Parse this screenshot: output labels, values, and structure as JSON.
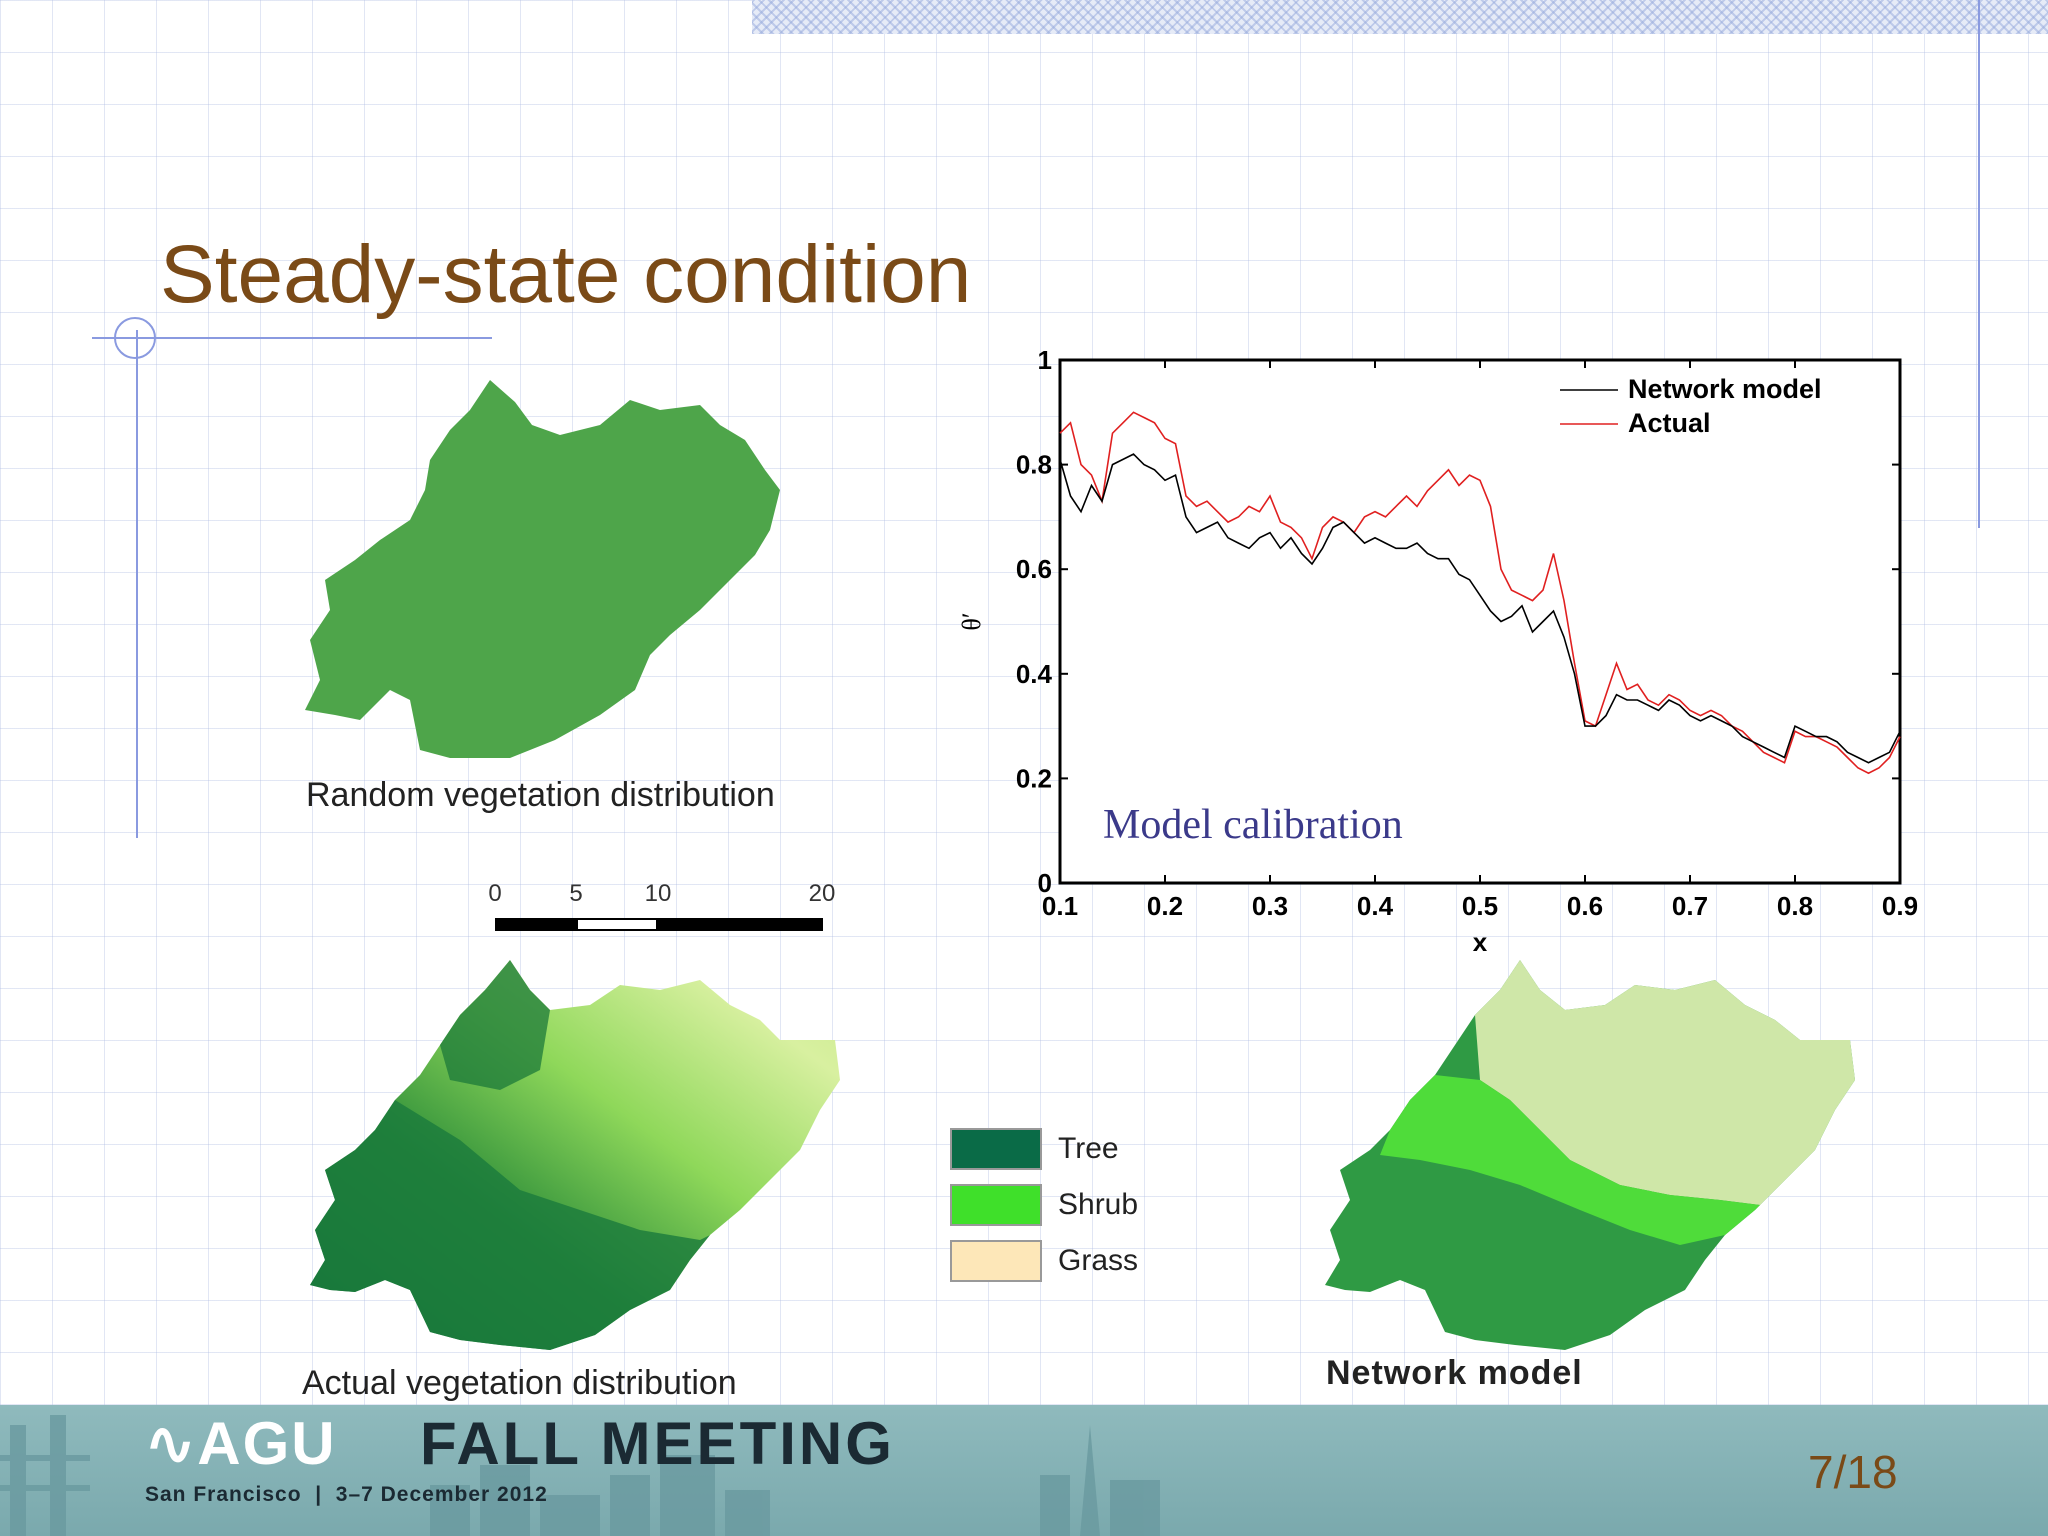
{
  "slide": {
    "title": "Steady-state condition",
    "page_number": "7/18"
  },
  "maps": {
    "random_caption": "Random vegetation distribution",
    "actual_caption": "Actual vegetation distribution",
    "network_caption": "Network model"
  },
  "scalebar": {
    "labels": [
      "0",
      "5",
      "10",
      "20"
    ]
  },
  "legend": {
    "items": [
      {
        "label": "Tree",
        "color": "#0a6b47"
      },
      {
        "label": "Shrub",
        "color": "#3fe02a"
      },
      {
        "label": "Grass",
        "color": "#fde7b8"
      }
    ]
  },
  "chart_data": {
    "type": "line",
    "xlabel": "x",
    "ylabel": "θ′",
    "xlim": [
      0.1,
      0.9
    ],
    "ylim": [
      0,
      1
    ],
    "x_ticks": [
      "0.1",
      "0.2",
      "0.3",
      "0.4",
      "0.5",
      "0.6",
      "0.7",
      "0.8",
      "0.9"
    ],
    "y_ticks": [
      "0",
      "0.2",
      "0.4",
      "0.6",
      "0.8",
      "1"
    ],
    "annotation": "Model calibration",
    "legend_position": "top-right",
    "series": [
      {
        "name": "Network model",
        "color": "#000000",
        "x": [
          0.1,
          0.11,
          0.12,
          0.13,
          0.14,
          0.15,
          0.16,
          0.17,
          0.18,
          0.19,
          0.2,
          0.21,
          0.22,
          0.23,
          0.24,
          0.25,
          0.26,
          0.27,
          0.28,
          0.29,
          0.3,
          0.31,
          0.32,
          0.33,
          0.34,
          0.35,
          0.36,
          0.37,
          0.38,
          0.39,
          0.4,
          0.41,
          0.42,
          0.43,
          0.44,
          0.45,
          0.46,
          0.47,
          0.48,
          0.49,
          0.5,
          0.51,
          0.52,
          0.53,
          0.54,
          0.55,
          0.56,
          0.57,
          0.58,
          0.59,
          0.6,
          0.61,
          0.62,
          0.63,
          0.64,
          0.65,
          0.66,
          0.67,
          0.68,
          0.69,
          0.7,
          0.71,
          0.72,
          0.73,
          0.74,
          0.75,
          0.76,
          0.77,
          0.78,
          0.79,
          0.8,
          0.81,
          0.82,
          0.83,
          0.84,
          0.85,
          0.86,
          0.87,
          0.88,
          0.89,
          0.9
        ],
        "y": [
          0.81,
          0.74,
          0.71,
          0.76,
          0.73,
          0.8,
          0.81,
          0.82,
          0.8,
          0.79,
          0.77,
          0.78,
          0.7,
          0.67,
          0.68,
          0.69,
          0.66,
          0.65,
          0.64,
          0.66,
          0.67,
          0.64,
          0.66,
          0.63,
          0.61,
          0.64,
          0.68,
          0.69,
          0.67,
          0.65,
          0.66,
          0.65,
          0.64,
          0.64,
          0.65,
          0.63,
          0.62,
          0.62,
          0.59,
          0.58,
          0.55,
          0.52,
          0.5,
          0.51,
          0.53,
          0.48,
          0.5,
          0.52,
          0.47,
          0.4,
          0.3,
          0.3,
          0.32,
          0.36,
          0.35,
          0.35,
          0.34,
          0.33,
          0.35,
          0.34,
          0.32,
          0.31,
          0.32,
          0.31,
          0.3,
          0.28,
          0.27,
          0.26,
          0.25,
          0.24,
          0.3,
          0.29,
          0.28,
          0.28,
          0.27,
          0.25,
          0.24,
          0.23,
          0.24,
          0.25,
          0.29
        ]
      },
      {
        "name": "Actual",
        "color": "#e02020",
        "x": [
          0.1,
          0.11,
          0.12,
          0.13,
          0.14,
          0.15,
          0.16,
          0.17,
          0.18,
          0.19,
          0.2,
          0.21,
          0.22,
          0.23,
          0.24,
          0.25,
          0.26,
          0.27,
          0.28,
          0.29,
          0.3,
          0.31,
          0.32,
          0.33,
          0.34,
          0.35,
          0.36,
          0.37,
          0.38,
          0.39,
          0.4,
          0.41,
          0.42,
          0.43,
          0.44,
          0.45,
          0.46,
          0.47,
          0.48,
          0.49,
          0.5,
          0.51,
          0.52,
          0.53,
          0.54,
          0.55,
          0.56,
          0.57,
          0.58,
          0.59,
          0.6,
          0.61,
          0.62,
          0.63,
          0.64,
          0.65,
          0.66,
          0.67,
          0.68,
          0.69,
          0.7,
          0.71,
          0.72,
          0.73,
          0.74,
          0.75,
          0.76,
          0.77,
          0.78,
          0.79,
          0.8,
          0.81,
          0.82,
          0.83,
          0.84,
          0.85,
          0.86,
          0.87,
          0.88,
          0.89,
          0.9
        ],
        "y": [
          0.86,
          0.88,
          0.8,
          0.78,
          0.73,
          0.86,
          0.88,
          0.9,
          0.89,
          0.88,
          0.85,
          0.84,
          0.74,
          0.72,
          0.73,
          0.71,
          0.69,
          0.7,
          0.72,
          0.71,
          0.74,
          0.69,
          0.68,
          0.66,
          0.62,
          0.68,
          0.7,
          0.69,
          0.67,
          0.7,
          0.71,
          0.7,
          0.72,
          0.74,
          0.72,
          0.75,
          0.77,
          0.79,
          0.76,
          0.78,
          0.77,
          0.72,
          0.6,
          0.56,
          0.55,
          0.54,
          0.56,
          0.63,
          0.54,
          0.42,
          0.31,
          0.3,
          0.36,
          0.42,
          0.37,
          0.38,
          0.35,
          0.34,
          0.36,
          0.35,
          0.33,
          0.32,
          0.33,
          0.32,
          0.3,
          0.29,
          0.27,
          0.25,
          0.24,
          0.23,
          0.29,
          0.28,
          0.28,
          0.27,
          0.26,
          0.24,
          0.22,
          0.21,
          0.22,
          0.24,
          0.28
        ]
      }
    ]
  }
}
